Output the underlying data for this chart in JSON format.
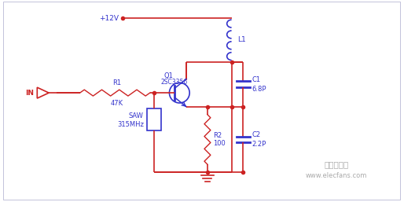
{
  "bg_color": "#ffffff",
  "wire_color": "#cc2222",
  "component_color": "#3333cc",
  "label_color": "#3333cc",
  "vcc_label": "+12V",
  "inductor_label": "L1",
  "transistor_label": "Q1",
  "transistor_model": "2SC3356",
  "r1_label": "R1",
  "r1_val": "47K",
  "r2_label": "R2",
  "r2_val": "100",
  "c1_label": "C1",
  "c1_val": "6.8P",
  "c2_label": "C2",
  "c2_val": "2.2P",
  "saw_label": "SAW",
  "saw_freq": "315MHz",
  "in_label": "IN",
  "watermark": "电子发烧友",
  "watermark2": "www.elecfans.com",
  "border_color": "#aaaacc"
}
